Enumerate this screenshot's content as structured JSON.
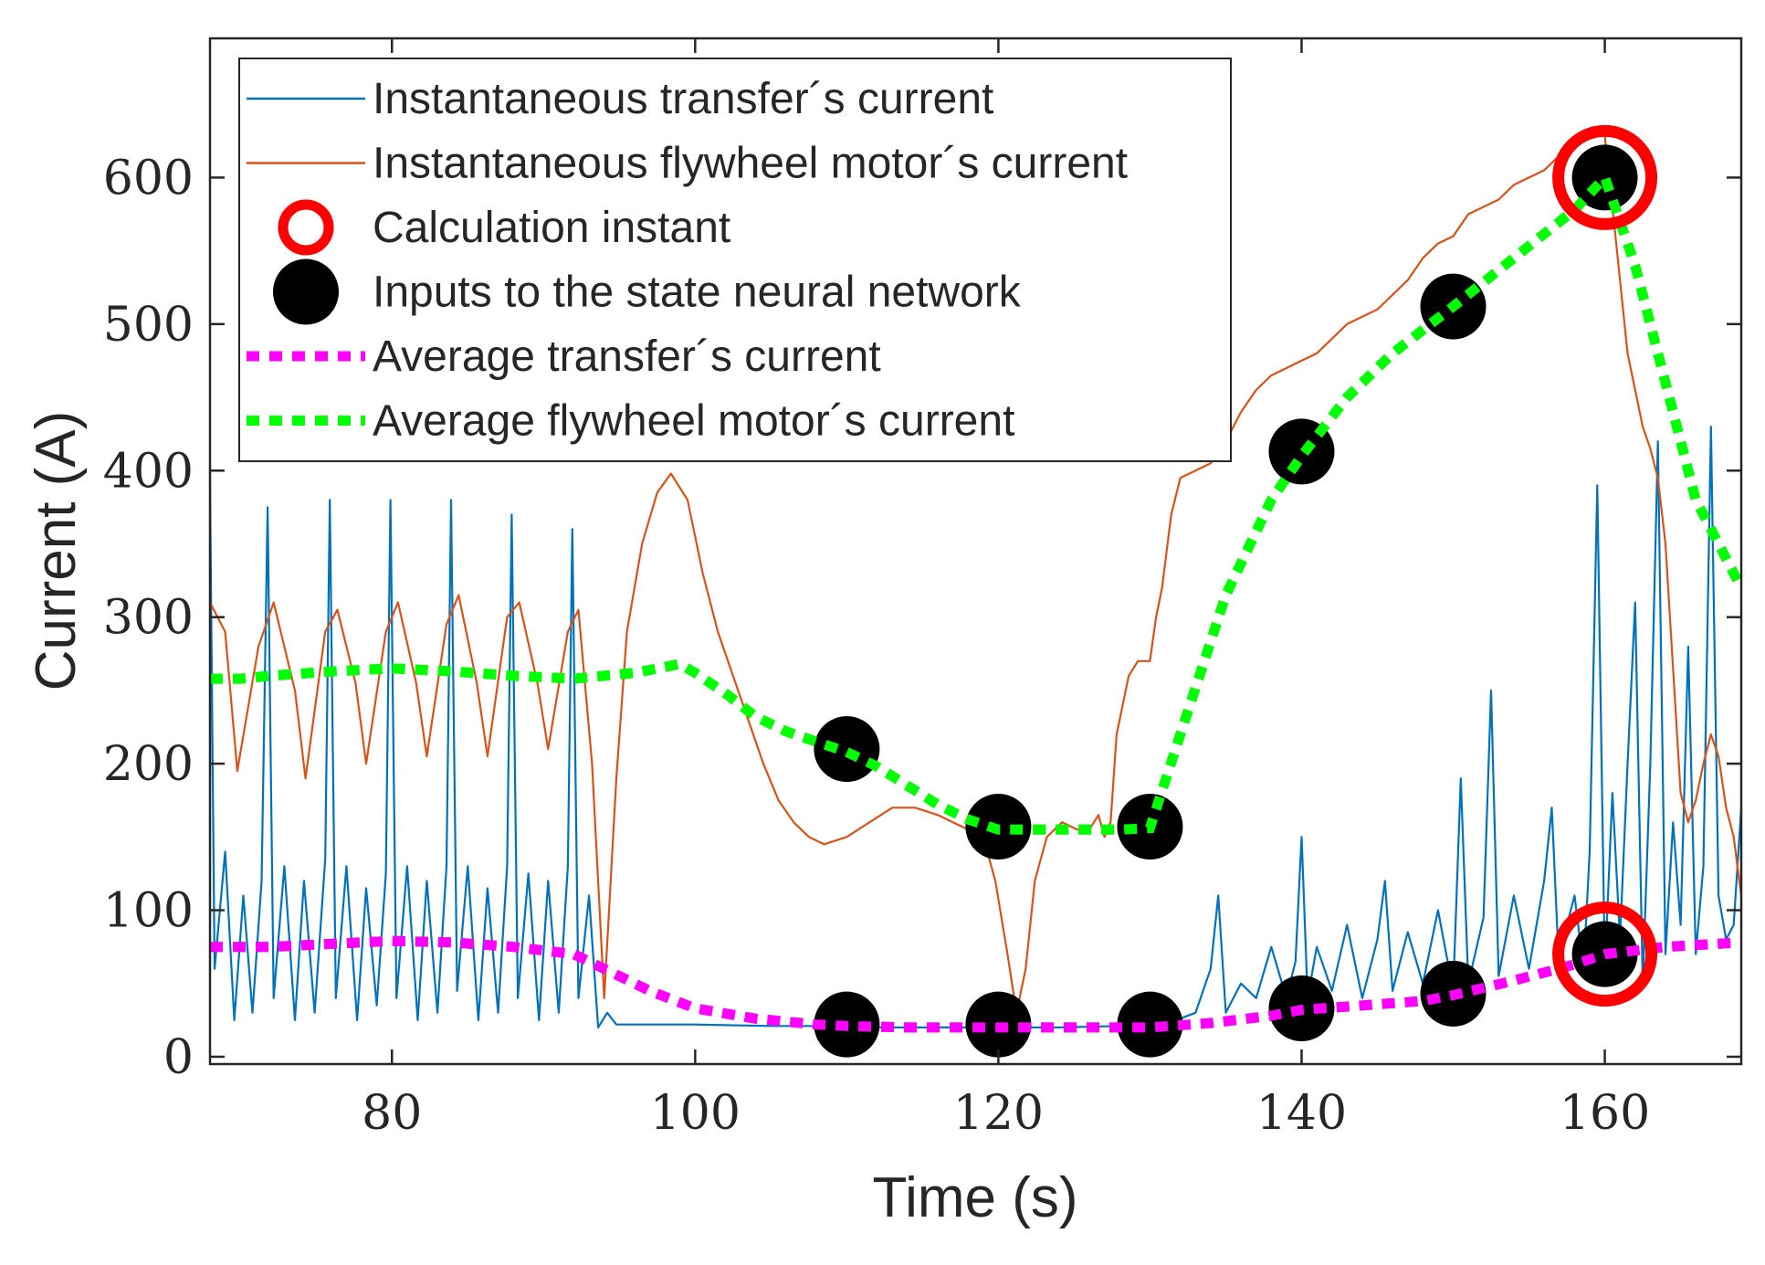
{
  "chart_data": {
    "type": "line",
    "title": "",
    "xlabel": "Time (s)",
    "ylabel": "Current (A)",
    "xlim": [
      68,
      169
    ],
    "ylim": [
      -5,
      695
    ],
    "xticks": [
      80,
      100,
      120,
      140,
      160
    ],
    "yticks": [
      0,
      100,
      200,
      300,
      400,
      500,
      600
    ],
    "grid": false,
    "legend_position": "top-left",
    "legend": [
      {
        "key": "transfer",
        "label": "Instantaneous transfer´s current",
        "style": "line",
        "color": "#0072BD"
      },
      {
        "key": "flywheel",
        "label": "Instantaneous flywheel motor´s current",
        "style": "line",
        "color": "#D95319"
      },
      {
        "key": "calc",
        "label": "Calculation instant",
        "style": "ring",
        "color": "#FF0000"
      },
      {
        "key": "inputs",
        "label": "Inputs to the state neural network",
        "style": "dot",
        "color": "#000000"
      },
      {
        "key": "avg_transfer",
        "label": "Average transfer´s current",
        "style": "dotted",
        "color": "#FF00FF"
      },
      {
        "key": "avg_flywheel",
        "label": "Average flywheel motor´s current",
        "style": "dotted",
        "color": "#00FF00"
      }
    ],
    "series": [
      {
        "name": "Instantaneous transfer´s current",
        "color": "#0072BD",
        "x": [
          68,
          68.3,
          69,
          69.6,
          70.2,
          70.8,
          71.4,
          71.8,
          72.2,
          72.9,
          73.6,
          74.2,
          74.9,
          75.6,
          75.9,
          76.3,
          77,
          77.7,
          78.3,
          79,
          79.6,
          79.9,
          80.3,
          81,
          81.7,
          82.3,
          83,
          83.6,
          83.9,
          84.3,
          85,
          85.7,
          86.3,
          87,
          87.6,
          87.9,
          88.3,
          89,
          89.7,
          90.3,
          91,
          91.6,
          91.9,
          92.3,
          93,
          93.6,
          94.2,
          94.8,
          96,
          100,
          105,
          108,
          112,
          116,
          120,
          124,
          128,
          131,
          133,
          134,
          134.5,
          135,
          136,
          137,
          138,
          139,
          139.6,
          140,
          140.4,
          141,
          142,
          143,
          144,
          145,
          145.5,
          146,
          147,
          148,
          149,
          150,
          150.5,
          151,
          152,
          152.5,
          153,
          154,
          155,
          156,
          156.5,
          157,
          157.5,
          158,
          158.6,
          159,
          159.5,
          160,
          160.5,
          161,
          161.5,
          162,
          162.5,
          163,
          163.5,
          164,
          164.5,
          165,
          165.5,
          166,
          166.5,
          167,
          167.5,
          168,
          168.5,
          169
        ],
        "y": [
          390,
          60,
          140,
          25,
          110,
          30,
          120,
          375,
          40,
          130,
          25,
          120,
          30,
          135,
          380,
          40,
          130,
          25,
          115,
          35,
          125,
          380,
          40,
          130,
          25,
          120,
          30,
          130,
          380,
          45,
          130,
          25,
          115,
          30,
          130,
          370,
          40,
          125,
          25,
          120,
          30,
          130,
          360,
          40,
          110,
          20,
          30,
          22,
          22,
          22,
          21,
          21,
          20,
          20,
          20,
          20,
          21,
          22,
          30,
          60,
          110,
          30,
          50,
          40,
          75,
          40,
          65,
          150,
          40,
          75,
          45,
          90,
          40,
          80,
          120,
          45,
          85,
          50,
          100,
          45,
          190,
          50,
          95,
          250,
          55,
          110,
          60,
          120,
          170,
          55,
          90,
          110,
          60,
          140,
          390,
          60,
          180,
          80,
          200,
          310,
          50,
          200,
          420,
          70,
          160,
          90,
          280,
          70,
          130,
          430,
          110,
          80,
          90,
          170
        ]
      },
      {
        "name": "Instantaneous flywheel motor´s current",
        "color": "#D95319",
        "x": [
          68,
          69,
          69.8,
          71.2,
          72.2,
          73.6,
          74.3,
          75.6,
          76.4,
          77.6,
          78.3,
          79.6,
          80.4,
          81.6,
          82.3,
          83.6,
          84.4,
          85.6,
          86.3,
          87.6,
          88.4,
          89.6,
          90.3,
          91.6,
          92.3,
          93.2,
          94,
          94.8,
          95.5,
          96.5,
          97.5,
          98.4,
          99.5,
          100.5,
          101.5,
          102.5,
          103.5,
          104.5,
          105.5,
          106.5,
          107.5,
          108.5,
          110,
          111.5,
          113,
          114.5,
          116,
          117,
          118,
          119,
          119.8,
          120.6,
          121.2,
          121.8,
          122.4,
          123.2,
          124.2,
          125.2,
          126,
          126.6,
          127,
          127.4,
          127.8,
          128.6,
          129.2,
          130,
          130.4,
          130.8,
          131.4,
          132,
          133,
          134,
          135,
          136,
          137,
          138,
          139,
          140,
          141,
          142,
          143,
          144,
          145,
          146,
          147,
          148,
          149,
          150,
          151,
          152,
          153,
          154,
          155,
          156,
          157,
          158,
          159,
          159.7,
          160,
          160.5,
          161,
          161.5,
          162,
          162.5,
          163,
          163.5,
          164,
          165,
          165.5,
          166,
          166.5,
          167,
          167.5,
          168,
          168.5,
          169
        ],
        "y": [
          310,
          290,
          195,
          280,
          310,
          250,
          190,
          290,
          305,
          255,
          200,
          290,
          310,
          255,
          205,
          295,
          315,
          255,
          205,
          300,
          310,
          255,
          210,
          290,
          305,
          200,
          40,
          190,
          290,
          350,
          385,
          398,
          380,
          330,
          290,
          260,
          230,
          200,
          175,
          160,
          150,
          145,
          150,
          160,
          170,
          170,
          165,
          160,
          155,
          150,
          120,
          70,
          30,
          60,
          120,
          150,
          160,
          155,
          155,
          165,
          150,
          160,
          220,
          260,
          270,
          270,
          300,
          320,
          370,
          395,
          400,
          405,
          420,
          440,
          455,
          465,
          470,
          475,
          480,
          490,
          500,
          505,
          510,
          520,
          530,
          545,
          555,
          560,
          575,
          580,
          585,
          595,
          600,
          605,
          615,
          625,
          630,
          635,
          628,
          580,
          530,
          480,
          455,
          430,
          415,
          395,
          350,
          180,
          160,
          175,
          200,
          220,
          205,
          170,
          150,
          110
        ]
      },
      {
        "name": "Average transfer´s current",
        "color": "#FF00FF",
        "style": "dotted",
        "x": [
          68,
          72,
          76,
          80,
          84,
          88,
          92,
          94,
          97,
          100,
          104,
          108,
          110,
          114,
          120,
          126,
          130,
          134,
          138,
          140,
          144,
          148,
          150,
          154,
          158,
          160,
          164,
          169
        ],
        "y": [
          75,
          75,
          77,
          79,
          78,
          75,
          70,
          60,
          45,
          33,
          26,
          22,
          21,
          20,
          20,
          20,
          20,
          23,
          28,
          32,
          35,
          38,
          42,
          52,
          63,
          70,
          75,
          78
        ]
      },
      {
        "name": "Average flywheel motor´s current",
        "color": "#00FF00",
        "style": "dotted",
        "x": [
          68,
          70,
          72,
          76,
          80,
          84,
          88,
          92,
          96,
          99,
          100,
          102,
          104,
          106,
          108,
          110,
          112,
          114,
          116,
          118,
          120,
          124,
          128,
          130,
          132,
          135,
          138,
          140,
          143,
          146,
          150,
          154,
          158,
          160,
          162,
          164,
          166,
          169
        ],
        "y": [
          258,
          258,
          260,
          263,
          265,
          263,
          260,
          258,
          262,
          268,
          262,
          248,
          232,
          222,
          215,
          208,
          198,
          185,
          172,
          162,
          155,
          155,
          155,
          156,
          220,
          315,
          380,
          410,
          450,
          480,
          512,
          545,
          578,
          600,
          540,
          460,
          380,
          320
        ]
      }
    ],
    "markers": {
      "inputs": [
        {
          "x": 110,
          "y": 210
        },
        {
          "x": 120,
          "y": 157
        },
        {
          "x": 130,
          "y": 157
        },
        {
          "x": 140,
          "y": 413
        },
        {
          "x": 150,
          "y": 512
        },
        {
          "x": 160,
          "y": 600
        },
        {
          "x": 110,
          "y": 22
        },
        {
          "x": 120,
          "y": 22
        },
        {
          "x": 130,
          "y": 22
        },
        {
          "x": 140,
          "y": 33
        },
        {
          "x": 150,
          "y": 43
        },
        {
          "x": 160,
          "y": 70
        }
      ],
      "calculation_instant": [
        {
          "x": 160,
          "y": 600
        },
        {
          "x": 160,
          "y": 70
        }
      ]
    }
  }
}
